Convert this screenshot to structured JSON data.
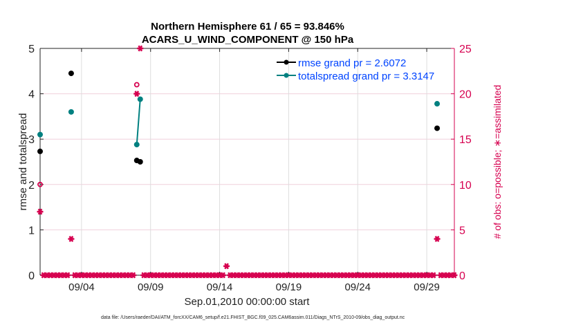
{
  "chart_data": {
    "type": "scatter",
    "title": [
      "Northern Hemisphere 61 / 65 = 93.846%",
      "ACARS_U_WIND_COMPONENT @ 150 hPa"
    ],
    "xlabel": "Sep.01,2010 00:00:00 start",
    "ylabel": "rmse and totalspread",
    "ylabel_right": "# of obs: o=possible; ∗=assimilated",
    "footer": "data file: /Users/raeder/DAI/ATM_forcXX/CAM6_setup/f.e21.FHIST_BGC.f09_025.CAM6assim.011/Diags_NTrS_2010-09/obs_diag_output.nc",
    "xlim_days": [
      0,
      30
    ],
    "ylim": [
      0,
      5
    ],
    "ylim_right": [
      0,
      25
    ],
    "yticks": [
      "0",
      "1",
      "2",
      "3",
      "4",
      "5"
    ],
    "yticks_right": [
      "0",
      "5",
      "10",
      "15",
      "20",
      "25"
    ],
    "xticks": [
      {
        "day": 3,
        "label": "09/04"
      },
      {
        "day": 8,
        "label": "09/09"
      },
      {
        "day": 13,
        "label": "09/14"
      },
      {
        "day": 18,
        "label": "09/19"
      },
      {
        "day": 23,
        "label": "09/24"
      },
      {
        "day": 28,
        "label": "09/29"
      }
    ],
    "grid": true,
    "legend_position": "top-right",
    "series": [
      {
        "name": "rmse grand pr = 2.6072",
        "color": "#000000",
        "points": [
          [
            0,
            2.73
          ],
          [
            2.25,
            4.45
          ],
          [
            7.0,
            2.53
          ],
          [
            7.25,
            2.5
          ],
          [
            28.75,
            3.24
          ]
        ]
      },
      {
        "name": "totalspread grand pr = 3.3147",
        "color": "#008080",
        "points": [
          [
            0,
            3.1
          ],
          [
            2.25,
            3.6
          ],
          [
            7.0,
            2.88
          ],
          [
            7.25,
            3.88
          ],
          [
            28.75,
            3.78
          ]
        ]
      }
    ],
    "obs_possible": {
      "color": "#d6004f",
      "nonzero": [
        [
          0,
          10
        ],
        [
          2.25,
          4
        ],
        [
          7.0,
          21
        ],
        [
          7.25,
          25
        ],
        [
          13.5,
          1
        ],
        [
          28.75,
          4
        ]
      ]
    },
    "obs_assimilated": {
      "color": "#d6004f",
      "nonzero": [
        [
          0,
          7
        ],
        [
          2.25,
          4
        ],
        [
          7.0,
          20
        ],
        [
          7.25,
          25
        ],
        [
          13.5,
          1
        ],
        [
          28.75,
          4
        ]
      ]
    },
    "obs_step_days": 0.25,
    "legend_color": "#0044ff"
  }
}
